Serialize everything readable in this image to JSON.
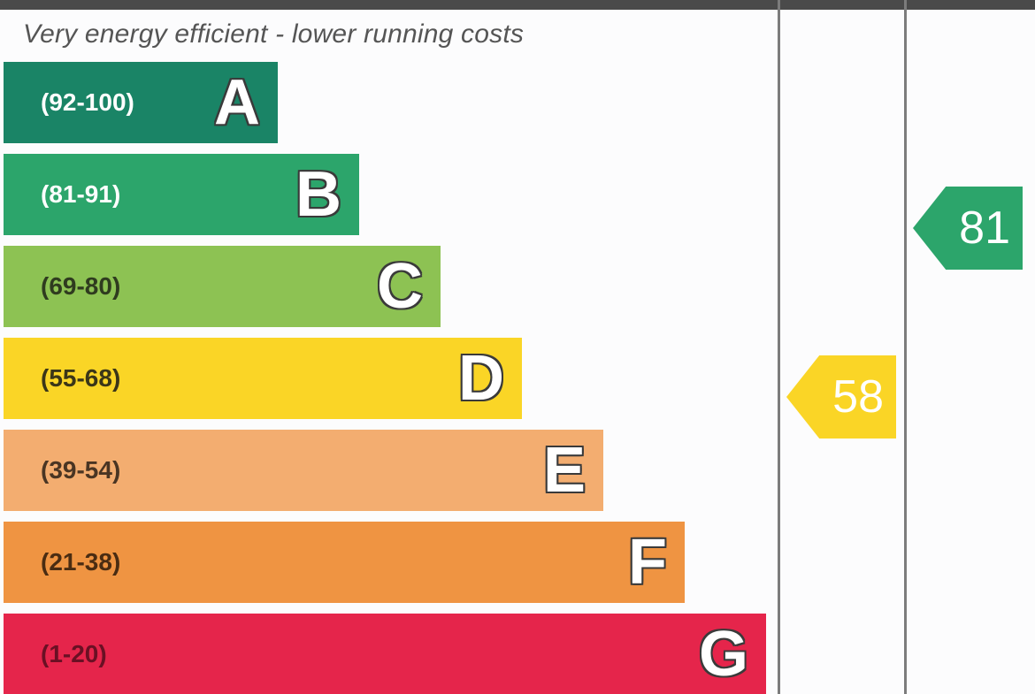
{
  "header": {
    "top_text": "Very energy efficient - lower running costs"
  },
  "chart_data": {
    "type": "bar",
    "bands": [
      {
        "letter": "A",
        "range": "(92-100)",
        "color": "#1a8466",
        "label_color": "#ffffff"
      },
      {
        "letter": "B",
        "range": "(81-91)",
        "color": "#2ca56b",
        "label_color": "#ffffff"
      },
      {
        "letter": "C",
        "range": "(69-80)",
        "color": "#8dc253",
        "label_color": "#2f3b1f"
      },
      {
        "letter": "D",
        "range": "(55-68)",
        "color": "#fad526",
        "label_color": "#3b3618"
      },
      {
        "letter": "E",
        "range": "(39-54)",
        "color": "#f3ad70",
        "label_color": "#4a3523"
      },
      {
        "letter": "F",
        "range": "(21-38)",
        "color": "#ef9442",
        "label_color": "#4a2c12"
      },
      {
        "letter": "G",
        "range": "(1-20)",
        "color": "#e5254b",
        "label_color": "#6a1024"
      }
    ],
    "ratings": [
      {
        "value": "58",
        "band": "D",
        "color": "#fad526"
      },
      {
        "value": "81",
        "band": "B",
        "color": "#2ca56b"
      }
    ]
  }
}
